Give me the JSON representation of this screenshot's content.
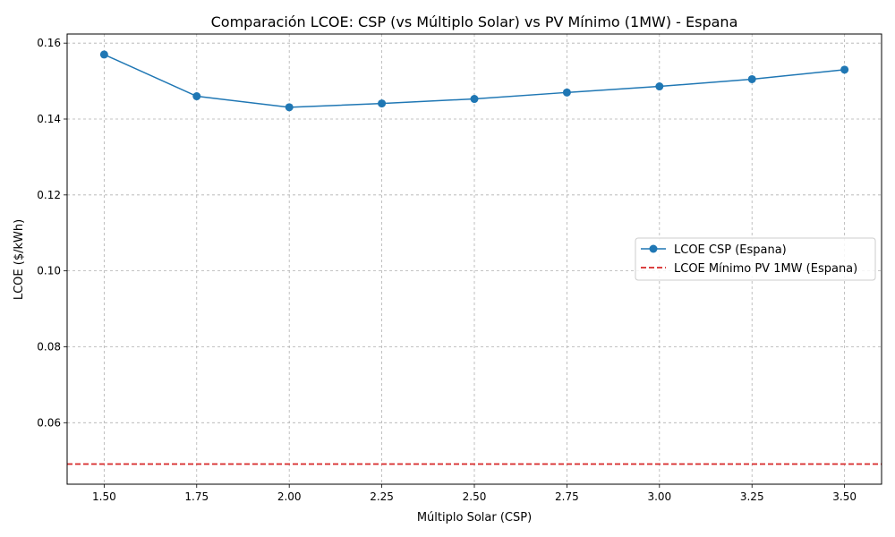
{
  "chart_data": {
    "type": "line",
    "title": "Comparación LCOE: CSP (vs Múltiplo Solar) vs PV Mínimo (1MW) - Espana",
    "xlabel": "Múltiplo Solar (CSP)",
    "ylabel": "LCOE ($/kWh)",
    "xlim": [
      1.4,
      3.6
    ],
    "ylim": [
      0.0438,
      0.1624
    ],
    "xticks": [
      "1.50",
      "1.75",
      "2.00",
      "2.25",
      "2.50",
      "2.75",
      "3.00",
      "3.25",
      "3.50"
    ],
    "yticks": [
      "0.06",
      "0.08",
      "0.10",
      "0.12",
      "0.14",
      "0.16"
    ],
    "grid": true,
    "legend_position": "center-right",
    "series": [
      {
        "name": "LCOE CSP (Espana)",
        "style": "solid-marker",
        "color": "#1f77b4",
        "x": [
          1.5,
          1.75,
          2.0,
          2.25,
          2.5,
          2.75,
          3.0,
          3.25,
          3.5
        ],
        "y": [
          0.157,
          0.146,
          0.1431,
          0.1441,
          0.1453,
          0.147,
          0.1486,
          0.1505,
          0.153
        ]
      },
      {
        "name": "LCOE Mínimo PV 1MW (Espana)",
        "style": "dashed-hline",
        "color": "#d62728",
        "y": 0.0491
      }
    ]
  }
}
